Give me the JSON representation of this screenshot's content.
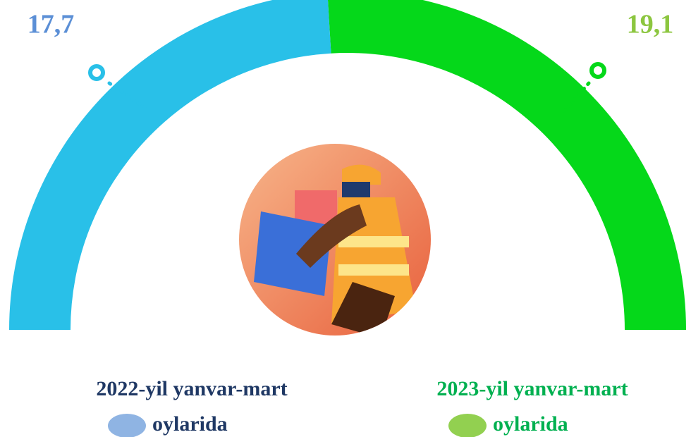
{
  "chart_data": {
    "type": "half-donut",
    "values": [
      17.7,
      19.1
    ],
    "value_labels": [
      "17,7",
      "19,1"
    ],
    "colors": [
      "#29c0e8",
      "#05d81a"
    ],
    "label_colors": [
      "#5b8fd6",
      "#8cc63f"
    ],
    "categories": [
      [
        "2022-yil yanvar-mart",
        "oylarida"
      ],
      [
        "2023-yil yanvar-mart",
        "oylarida"
      ]
    ],
    "legend_colors": [
      "#8fb4e3",
      "#92d050"
    ],
    "legend_text_colors": [
      "#1f3864",
      "#00b050"
    ]
  }
}
